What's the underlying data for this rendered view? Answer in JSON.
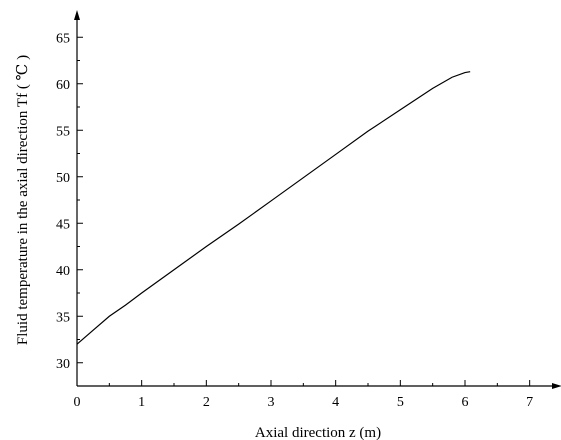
{
  "chart_data": {
    "type": "line",
    "title": "",
    "xlabel": "Axial direction    z   (m)",
    "ylabel": "Fluid temperature in the axial direction Tf  (  ℃  )",
    "xlim": [
      0,
      7.5
    ],
    "ylim": [
      27.5,
      67.5
    ],
    "x_ticks": [
      0,
      1,
      2,
      3,
      4,
      5,
      6,
      7
    ],
    "x_tick_labels": [
      "0",
      "1",
      "2",
      "3",
      "4",
      "5",
      "6",
      "7"
    ],
    "y_ticks": [
      30,
      35,
      40,
      45,
      50,
      55,
      60,
      65
    ],
    "y_tick_labels": [
      "30",
      "35",
      "40",
      "45",
      "50",
      "55",
      "60",
      "65"
    ],
    "grid": false,
    "legend": "none",
    "series": [
      {
        "color": "#000000",
        "x": [
          0,
          0.25,
          0.5,
          0.75,
          1.0,
          1.5,
          2.0,
          2.5,
          3.0,
          3.5,
          4.0,
          4.5,
          5.0,
          5.5,
          5.8,
          6.0,
          6.08
        ],
        "y": [
          32.0,
          33.5,
          35.0,
          36.2,
          37.5,
          40.0,
          42.5,
          44.9,
          47.4,
          49.9,
          52.4,
          54.9,
          57.2,
          59.5,
          60.7,
          61.2,
          61.3
        ]
      }
    ]
  }
}
